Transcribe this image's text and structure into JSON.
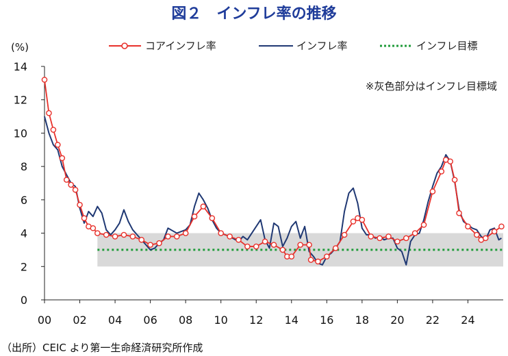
{
  "chart_data": {
    "type": "line",
    "title": "図２　インフレ率の推移",
    "ylabel": "(%)",
    "xlabel": "",
    "ylim": [
      0,
      14
    ],
    "yticks": [
      0,
      2,
      4,
      6,
      8,
      10,
      12,
      14
    ],
    "xlim": [
      2000,
      2026
    ],
    "xtick_values": [
      2000,
      2002,
      2004,
      2006,
      2008,
      2010,
      2012,
      2014,
      2016,
      2018,
      2020,
      2022,
      2024
    ],
    "xtick_labels": [
      "00",
      "02",
      "04",
      "06",
      "08",
      "10",
      "12",
      "14",
      "16",
      "18",
      "20",
      "22",
      "24"
    ],
    "grid": false,
    "legend_position": "top",
    "shaded_band": {
      "label": "※灰色部分はインフレ目標域",
      "x": [
        2003,
        2026
      ],
      "y": [
        2,
        4
      ],
      "color": "#d9d9d9"
    },
    "series": [
      {
        "name": "コアインフレ率",
        "color": "#e8302a",
        "marker": "circle",
        "x": [
          2000.0,
          2000.25,
          2000.5,
          2000.75,
          2001.0,
          2001.25,
          2001.5,
          2001.75,
          2002.0,
          2002.25,
          2002.5,
          2002.75,
          2003.0,
          2003.5,
          2004.0,
          2004.5,
          2005.0,
          2005.5,
          2006.0,
          2006.5,
          2007.0,
          2007.5,
          2008.0,
          2008.5,
          2009.0,
          2009.5,
          2010.0,
          2010.5,
          2011.0,
          2011.5,
          2012.0,
          2012.5,
          2013.0,
          2013.5,
          2013.75,
          2014.0,
          2014.5,
          2015.0,
          2015.1,
          2015.5,
          2016.0,
          2016.5,
          2017.0,
          2017.5,
          2017.75,
          2018.0,
          2018.5,
          2019.0,
          2019.5,
          2020.0,
          2020.5,
          2021.0,
          2021.5,
          2022.0,
          2022.5,
          2022.75,
          2023.0,
          2023.25,
          2023.5,
          2024.0,
          2024.5,
          2024.75,
          2025.0,
          2025.5,
          2025.9
        ],
        "y": [
          13.2,
          11.2,
          10.2,
          9.3,
          8.5,
          7.2,
          6.9,
          6.6,
          5.7,
          4.9,
          4.4,
          4.3,
          4.0,
          3.9,
          3.8,
          3.9,
          3.8,
          3.6,
          3.3,
          3.4,
          3.8,
          3.8,
          4.0,
          5.0,
          5.6,
          4.9,
          4.0,
          3.8,
          3.6,
          3.2,
          3.2,
          3.5,
          3.3,
          3.0,
          2.6,
          2.6,
          3.3,
          3.3,
          2.4,
          2.3,
          2.6,
          3.1,
          3.9,
          4.7,
          4.9,
          4.8,
          3.8,
          3.7,
          3.8,
          3.5,
          3.7,
          4.0,
          4.5,
          6.5,
          7.7,
          8.4,
          8.3,
          7.2,
          5.2,
          4.4,
          3.9,
          3.6,
          3.7,
          4.1,
          4.4
        ]
      },
      {
        "name": "インフレ率",
        "color": "#1f3873",
        "x": [
          2000.0,
          2000.25,
          2000.5,
          2000.75,
          2001.0,
          2001.25,
          2001.5,
          2001.75,
          2002.0,
          2002.25,
          2002.5,
          2002.75,
          2003.0,
          2003.25,
          2003.5,
          2003.75,
          2004.0,
          2004.25,
          2004.5,
          2004.75,
          2005.0,
          2005.25,
          2005.5,
          2005.75,
          2006.0,
          2006.25,
          2006.5,
          2006.75,
          2007.0,
          2007.5,
          2008.0,
          2008.25,
          2008.5,
          2008.75,
          2009.0,
          2009.25,
          2009.5,
          2009.75,
          2010.0,
          2010.5,
          2011.0,
          2011.25,
          2011.5,
          2011.75,
          2012.0,
          2012.25,
          2012.5,
          2012.75,
          2013.0,
          2013.25,
          2013.5,
          2013.75,
          2014.0,
          2014.25,
          2014.5,
          2014.75,
          2015.0,
          2015.25,
          2015.5,
          2015.75,
          2016.0,
          2016.25,
          2016.5,
          2016.75,
          2017.0,
          2017.25,
          2017.5,
          2017.75,
          2018.0,
          2018.25,
          2018.5,
          2018.75,
          2019.0,
          2019.25,
          2019.5,
          2019.75,
          2020.0,
          2020.25,
          2020.5,
          2020.75,
          2021.0,
          2021.25,
          2021.5,
          2021.75,
          2022.0,
          2022.25,
          2022.5,
          2022.75,
          2023.0,
          2023.25,
          2023.5,
          2023.75,
          2024.0,
          2024.25,
          2024.5,
          2024.75,
          2025.0,
          2025.25,
          2025.5,
          2025.75,
          2025.9
        ],
        "y": [
          11.0,
          10.0,
          9.3,
          9.0,
          8.0,
          7.5,
          7.0,
          6.8,
          5.5,
          4.6,
          5.3,
          5.0,
          5.6,
          5.2,
          4.2,
          3.9,
          4.2,
          4.6,
          5.4,
          4.7,
          4.2,
          3.9,
          3.6,
          3.3,
          3.0,
          3.1,
          3.4,
          3.6,
          4.3,
          4.0,
          4.2,
          4.5,
          5.6,
          6.4,
          6.0,
          5.5,
          4.8,
          4.3,
          4.0,
          3.8,
          3.5,
          3.8,
          3.6,
          4.0,
          4.4,
          4.8,
          3.6,
          3.1,
          4.6,
          4.4,
          3.2,
          3.7,
          4.4,
          4.7,
          3.7,
          4.4,
          2.9,
          2.6,
          2.2,
          2.1,
          2.6,
          2.8,
          3.1,
          3.5,
          5.3,
          6.4,
          6.7,
          5.8,
          4.3,
          3.9,
          3.9,
          3.7,
          3.8,
          3.6,
          3.7,
          3.7,
          3.1,
          2.9,
          2.1,
          3.5,
          3.9,
          4.0,
          4.8,
          5.9,
          6.8,
          7.6,
          8.0,
          8.7,
          8.3,
          7.1,
          5.4,
          4.7,
          4.5,
          4.3,
          4.2,
          3.8,
          3.6,
          4.2,
          4.3,
          3.6,
          3.7
        ]
      },
      {
        "name": "インフレ目標",
        "color": "#1f9b3a",
        "style": "dotted",
        "x": [
          2003,
          2026
        ],
        "y": [
          3,
          3
        ]
      }
    ]
  },
  "source": "（出所）CEIC より第一生命経済研究所作成"
}
